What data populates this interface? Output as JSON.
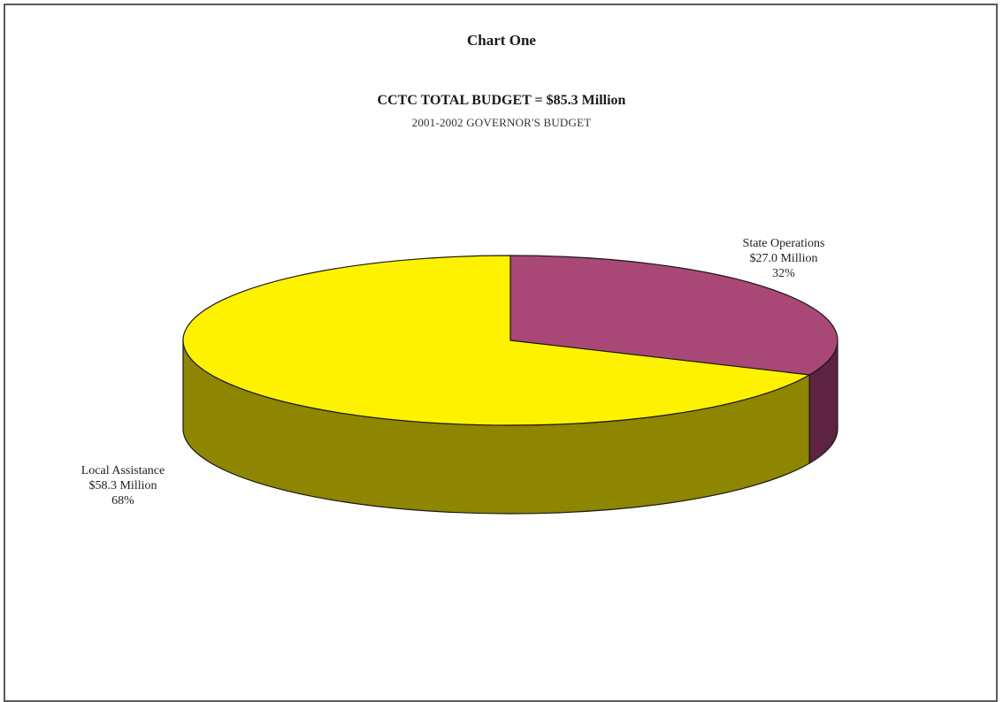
{
  "heading": "Chart One",
  "chart_data": {
    "type": "pie",
    "title": "CCTC TOTAL BUDGET = $85.3 Million",
    "subtitle": "2001-2002 GOVERNOR'S BUDGET",
    "units": "Million",
    "style": "3d",
    "slices": [
      {
        "name": "State Operations",
        "value": 27.0,
        "percent": 32,
        "amount_label": "$27.0 Million",
        "percent_label": "32%",
        "color": "#a94876",
        "side_color": "#5e2243"
      },
      {
        "name": "Local Assistance",
        "value": 58.3,
        "percent": 68,
        "amount_label": "$58.3 Million",
        "percent_label": "68%",
        "color": "#fff200",
        "side_color": "#8e8500"
      }
    ]
  }
}
